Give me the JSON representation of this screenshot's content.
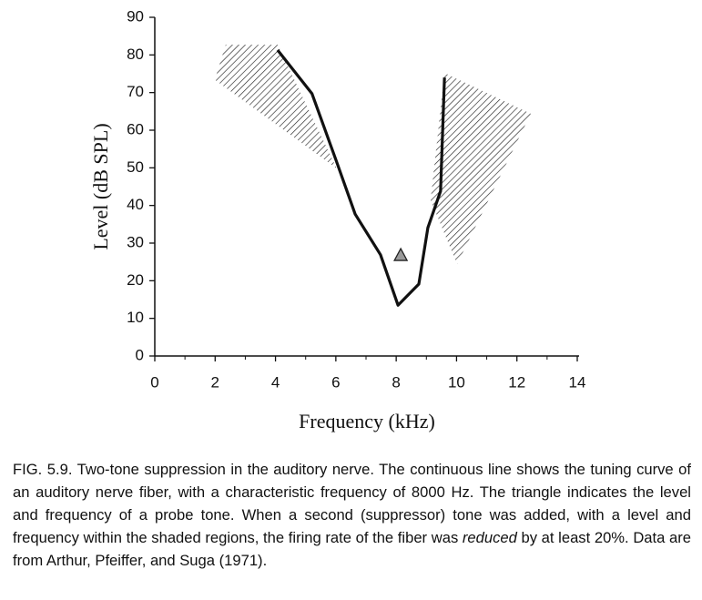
{
  "chart_data": {
    "type": "line",
    "x_label": "Frequency (kHz)",
    "y_label": "Level (dB SPL)",
    "xlim": [
      0,
      14
    ],
    "ylim": [
      0,
      90
    ],
    "xticks": [
      0,
      2,
      4,
      6,
      8,
      10,
      12,
      14
    ],
    "xminor_ticks": [
      1,
      3,
      5,
      7,
      9,
      11,
      13
    ],
    "yticks": [
      0,
      10,
      20,
      30,
      40,
      50,
      60,
      70,
      80,
      90
    ],
    "grid": false,
    "series": [
      {
        "color": "#111111",
        "x": [
          4.07,
          5.21,
          6.03,
          6.64,
          7.48,
          8.06,
          8.75,
          9.05,
          9.47,
          9.6
        ],
        "values": [
          81.3,
          69.7,
          51.5,
          37.7,
          26.9,
          13.5,
          19.1,
          34.1,
          43.8,
          74.0
        ]
      }
    ],
    "probe": {
      "x": 8.15,
      "y": 26.6,
      "color": "#9a9a9a"
    },
    "regions": [
      {
        "x": [
          2.35,
          4.07,
          6.03,
          1.99
        ],
        "y": [
          82.7,
          82.7,
          49.8,
          73.4
        ]
      },
      {
        "x": [
          9.6,
          12.46,
          10.02,
          9.14
        ],
        "y": [
          75.2,
          64.4,
          24.4,
          41.4
        ]
      }
    ]
  },
  "caption": {
    "before": "FIG. 5.9. Two-tone suppression in the auditory nerve. The continuous line shows the tuning curve of an auditory nerve fiber, with a characteristic frequency of 8000 Hz. The triangle indicates the level and frequency of a probe tone. When a second (suppressor) tone was added, with a level and frequency within the shaded regions, the firing rate of the fiber was ",
    "emphasis": "reduced",
    "after": " by at least 20%. Data are from Arthur, Pfeiffer, and Suga (1971)."
  }
}
